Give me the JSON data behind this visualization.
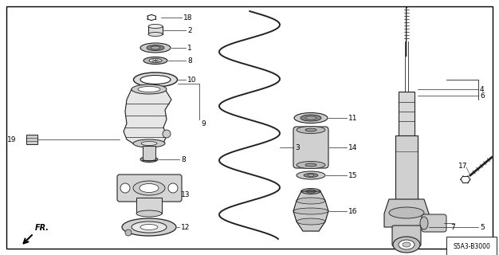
{
  "bg_color": "#ffffff",
  "border_color": "#000000",
  "line_color": "#222222",
  "diagram_code": "S5A3-B3000",
  "fr_label": "FR.",
  "figsize": [
    6.26,
    3.2
  ],
  "dpi": 100
}
